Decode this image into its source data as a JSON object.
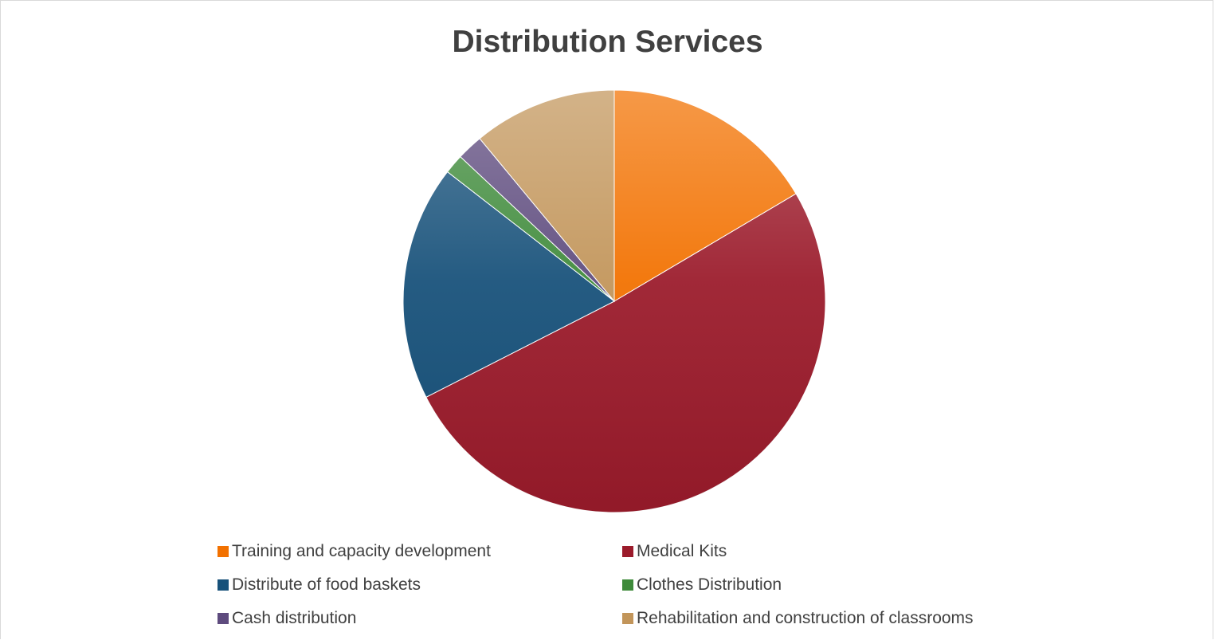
{
  "chart_data": {
    "type": "pie",
    "title": "Distribution Services",
    "legend_position": "bottom",
    "slices": [
      {
        "label": "Training and capacity development",
        "value": 16.5,
        "color": "#F27100"
      },
      {
        "label": "Medical Kits",
        "value": 51.0,
        "color": "#9B1B2B"
      },
      {
        "label": "Distribute of food baskets",
        "value": 18.0,
        "color": "#17517A"
      },
      {
        "label": "Clothes Distribution",
        "value": 1.5,
        "color": "#3E8A3A"
      },
      {
        "label": "Cash distribution",
        "value": 2.0,
        "color": "#5E4B7E"
      },
      {
        "label": "Rehabilitation and construction of classrooms",
        "value": 11.0,
        "color": "#C2955A"
      }
    ]
  }
}
